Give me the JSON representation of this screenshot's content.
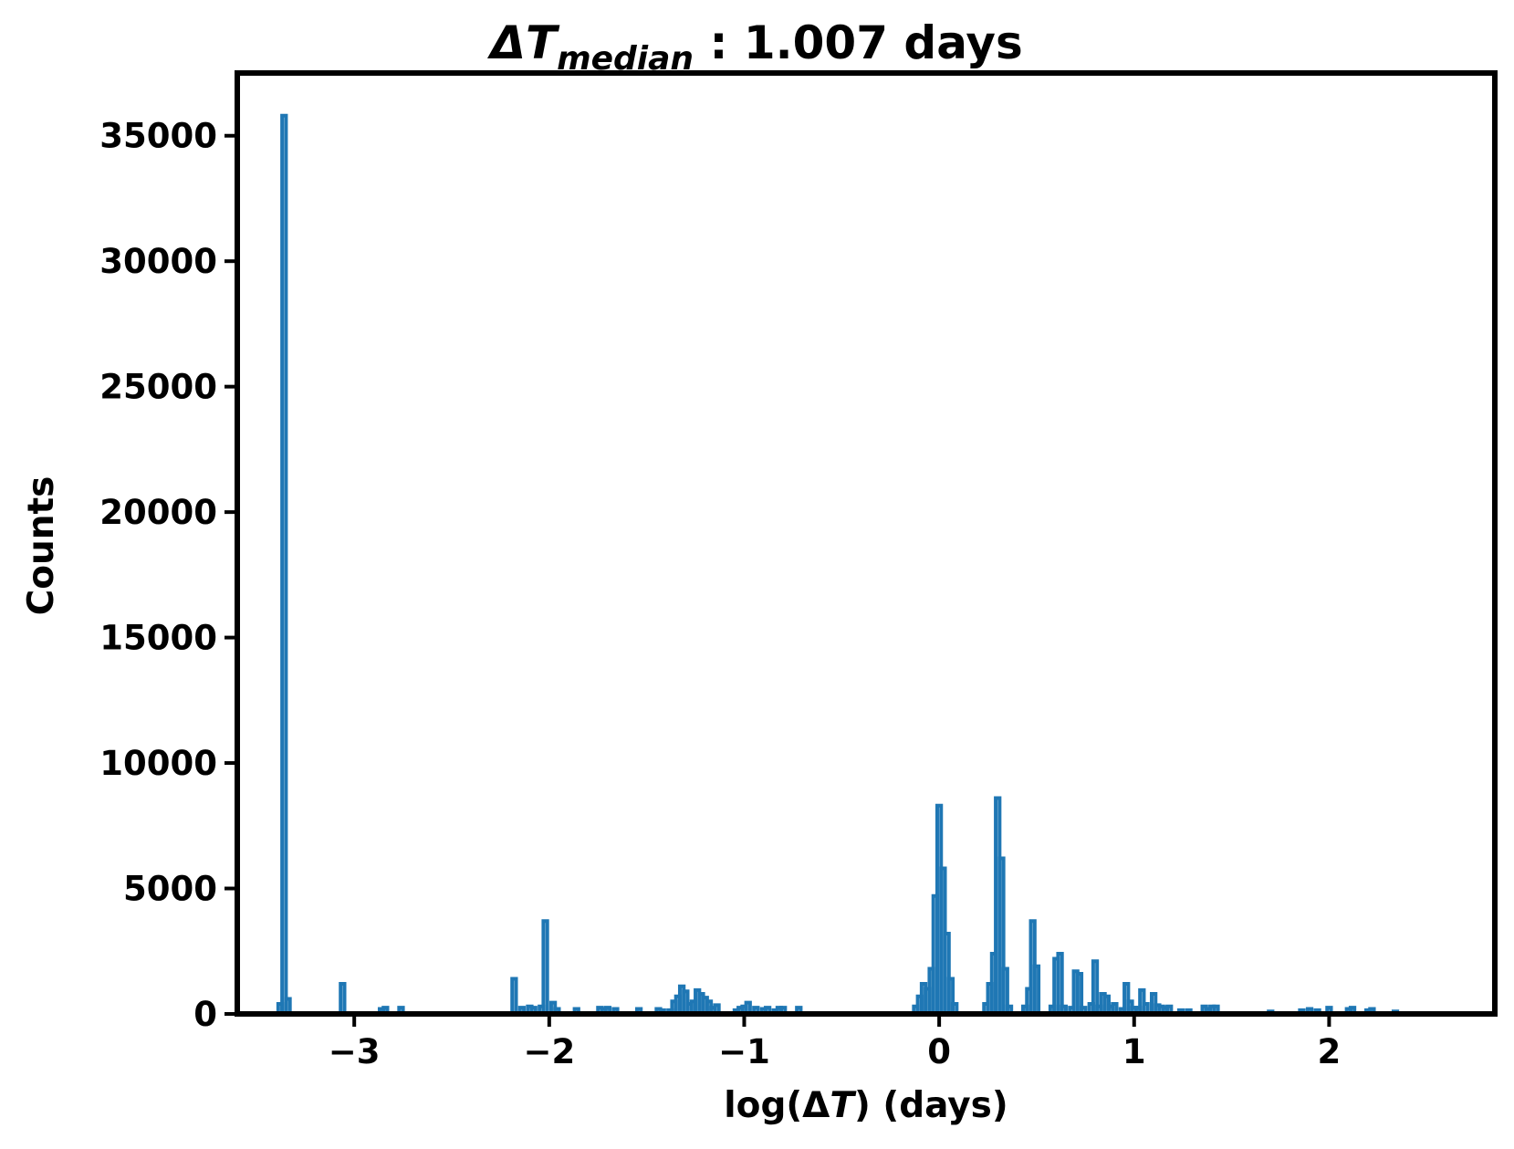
{
  "chart_data": {
    "type": "bar",
    "histtype": "step",
    "title": {
      "symbol": "ΔT",
      "subscript": "median",
      "text": " : 1.007 days"
    },
    "xlabel": {
      "prefix": "log(Δ",
      "italic": "T",
      "suffix": ") (days)"
    },
    "ylabel": "Counts",
    "xlim": [
      -3.6,
      2.85
    ],
    "ylim": [
      0,
      37500
    ],
    "xticks": [
      -3,
      -2,
      -1,
      0,
      1,
      2
    ],
    "xtick_labels": [
      "−3",
      "−2",
      "−1",
      "0",
      "1",
      "2"
    ],
    "yticks": [
      0,
      5000,
      10000,
      15000,
      20000,
      25000,
      30000,
      35000
    ],
    "ytick_labels": [
      "0",
      "5000",
      "10000",
      "15000",
      "20000",
      "25000",
      "30000",
      "35000"
    ],
    "grid": false,
    "color": "#1f77b4",
    "bin_width": 0.02,
    "bins": [
      [
        -3.38,
        400
      ],
      [
        -3.36,
        35800
      ],
      [
        -3.34,
        600
      ],
      [
        -3.06,
        1200
      ],
      [
        -2.86,
        200
      ],
      [
        -2.84,
        250
      ],
      [
        -2.76,
        250
      ],
      [
        -2.18,
        1400
      ],
      [
        -2.14,
        250
      ],
      [
        -2.1,
        300
      ],
      [
        -2.08,
        250
      ],
      [
        -2.04,
        300
      ],
      [
        -2.02,
        3700
      ],
      [
        -1.98,
        450
      ],
      [
        -1.96,
        200
      ],
      [
        -1.86,
        200
      ],
      [
        -1.74,
        250
      ],
      [
        -1.72,
        200
      ],
      [
        -1.7,
        250
      ],
      [
        -1.66,
        200
      ],
      [
        -1.54,
        200
      ],
      [
        -1.44,
        200
      ],
      [
        -1.42,
        150
      ],
      [
        -1.38,
        150
      ],
      [
        -1.36,
        500
      ],
      [
        -1.34,
        700
      ],
      [
        -1.32,
        1100
      ],
      [
        -1.3,
        900
      ],
      [
        -1.28,
        400
      ],
      [
        -1.26,
        500
      ],
      [
        -1.24,
        950
      ],
      [
        -1.22,
        800
      ],
      [
        -1.2,
        650
      ],
      [
        -1.18,
        500
      ],
      [
        -1.16,
        250
      ],
      [
        -1.14,
        350
      ],
      [
        -1.04,
        150
      ],
      [
        -1.02,
        250
      ],
      [
        -1.0,
        300
      ],
      [
        -0.98,
        450
      ],
      [
        -0.94,
        250
      ],
      [
        -0.9,
        200
      ],
      [
        -0.88,
        250
      ],
      [
        -0.84,
        150
      ],
      [
        -0.82,
        250
      ],
      [
        -0.8,
        250
      ],
      [
        -0.72,
        250
      ],
      [
        -0.12,
        300
      ],
      [
        -0.1,
        700
      ],
      [
        -0.08,
        1200
      ],
      [
        -0.06,
        1000
      ],
      [
        -0.04,
        1800
      ],
      [
        -0.02,
        4700
      ],
      [
        0.0,
        8300
      ],
      [
        0.02,
        5800
      ],
      [
        0.04,
        3200
      ],
      [
        0.06,
        1400
      ],
      [
        0.08,
        400
      ],
      [
        0.24,
        400
      ],
      [
        0.26,
        1200
      ],
      [
        0.28,
        2400
      ],
      [
        0.3,
        8600
      ],
      [
        0.32,
        6200
      ],
      [
        0.34,
        1800
      ],
      [
        0.36,
        300
      ],
      [
        0.44,
        300
      ],
      [
        0.46,
        1000
      ],
      [
        0.48,
        3700
      ],
      [
        0.5,
        1900
      ],
      [
        0.58,
        300
      ],
      [
        0.6,
        2200
      ],
      [
        0.62,
        2400
      ],
      [
        0.64,
        300
      ],
      [
        0.68,
        250
      ],
      [
        0.7,
        1700
      ],
      [
        0.72,
        1600
      ],
      [
        0.74,
        250
      ],
      [
        0.78,
        400
      ],
      [
        0.8,
        2100
      ],
      [
        0.82,
        300
      ],
      [
        0.84,
        800
      ],
      [
        0.86,
        700
      ],
      [
        0.88,
        300
      ],
      [
        0.9,
        400
      ],
      [
        0.94,
        200
      ],
      [
        0.96,
        1200
      ],
      [
        0.98,
        500
      ],
      [
        1.0,
        250
      ],
      [
        1.02,
        250
      ],
      [
        1.04,
        950
      ],
      [
        1.06,
        400
      ],
      [
        1.1,
        800
      ],
      [
        1.12,
        350
      ],
      [
        1.14,
        300
      ],
      [
        1.16,
        250
      ],
      [
        1.18,
        300
      ],
      [
        1.24,
        150
      ],
      [
        1.28,
        150
      ],
      [
        1.36,
        300
      ],
      [
        1.38,
        200
      ],
      [
        1.4,
        300
      ],
      [
        1.42,
        300
      ],
      [
        1.7,
        100
      ],
      [
        1.86,
        150
      ],
      [
        1.9,
        200
      ],
      [
        1.94,
        150
      ],
      [
        2.0,
        250
      ],
      [
        2.1,
        200
      ],
      [
        2.12,
        250
      ],
      [
        2.2,
        150
      ],
      [
        2.22,
        200
      ],
      [
        2.34,
        100
      ]
    ]
  }
}
